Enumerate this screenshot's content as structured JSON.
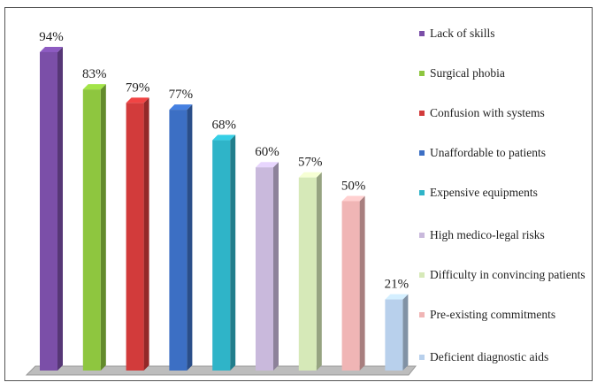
{
  "chart_data": {
    "type": "bar",
    "categories": [
      "Lack of skills",
      "Surgical phobia",
      "Confusion with systems",
      "Unaffordable to patients",
      "Expensive equipments",
      "High medico-legal risks",
      "Difficulty in convincing patients",
      "Pre-existing commitments",
      "Deficient diagnostic aids"
    ],
    "values": [
      94,
      83,
      79,
      77,
      68,
      60,
      57,
      50,
      21
    ],
    "value_labels": [
      "94%",
      "83%",
      "79%",
      "77%",
      "68%",
      "60%",
      "57%",
      "50%",
      "21%"
    ],
    "colors": [
      "#7b4fa8",
      "#8ec63f",
      "#d23b3b",
      "#3c6fc4",
      "#2fb4c8",
      "#c9b9dc",
      "#d6e9b8",
      "#f0b5b5",
      "#b8d0ec"
    ],
    "legend": "right"
  }
}
